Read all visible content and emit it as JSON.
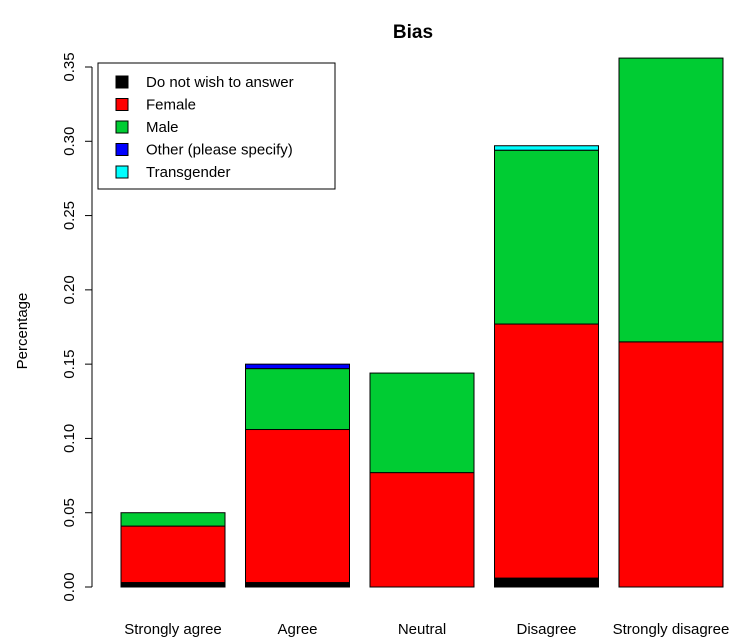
{
  "chart_data": {
    "type": "bar",
    "stacked": true,
    "title": "Bias",
    "xlabel": "",
    "ylabel": "Percentage",
    "ylim": [
      0,
      0.35
    ],
    "yticks": [
      "0.00",
      "0.05",
      "0.10",
      "0.15",
      "0.20",
      "0.25",
      "0.30",
      "0.35"
    ],
    "categories": [
      "Strongly agree",
      "Agree",
      "Neutral",
      "Disagree",
      "Strongly disagree"
    ],
    "series": [
      {
        "name": "Do not wish to answer",
        "color": "#000000",
        "values": [
          0.003,
          0.003,
          0.0,
          0.006,
          0.0
        ]
      },
      {
        "name": "Female",
        "color": "#ff0000",
        "values": [
          0.038,
          0.103,
          0.077,
          0.171,
          0.165
        ]
      },
      {
        "name": "Male",
        "color": "#00cc33",
        "values": [
          0.009,
          0.041,
          0.067,
          0.117,
          0.191
        ]
      },
      {
        "name": "Other (please specify)",
        "color": "#0000ff",
        "values": [
          0.0,
          0.003,
          0.0,
          0.0,
          0.0
        ]
      },
      {
        "name": "Transgender",
        "color": "#00ffff",
        "values": [
          0.0,
          0.0,
          0.0,
          0.003,
          0.0
        ]
      }
    ],
    "legend_position": "top-left",
    "grid": false
  }
}
